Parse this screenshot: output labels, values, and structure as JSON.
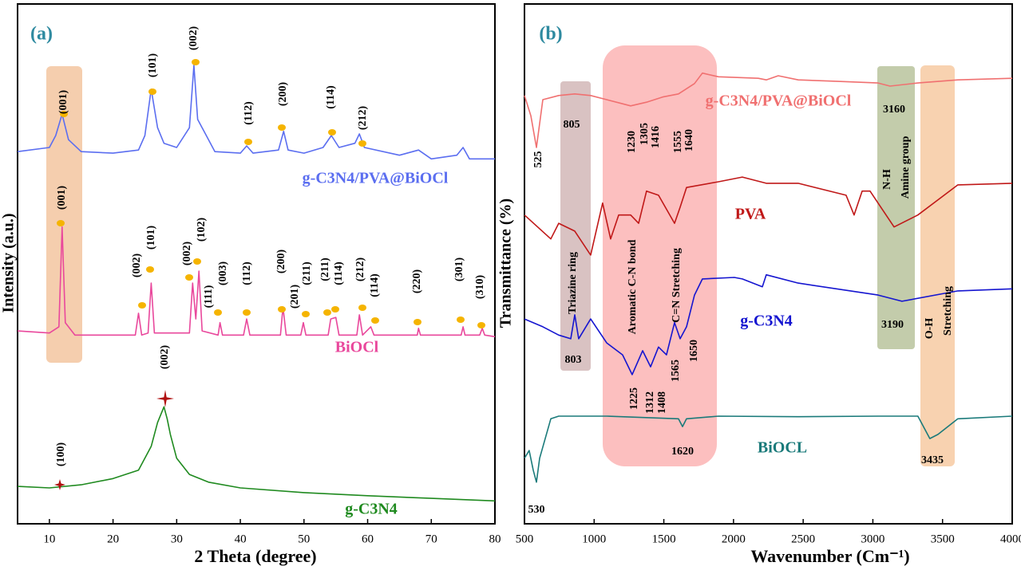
{
  "chart_data": [
    {
      "type": "line",
      "panel": "(a)",
      "xlabel": "2 Theta (degree)",
      "ylabel": "Intensity (a.u.)",
      "xlim": [
        5,
        80
      ],
      "ylim": [
        0,
        100
      ],
      "xticks": [
        10,
        20,
        30,
        40,
        50,
        60,
        70,
        80
      ],
      "series": [
        {
          "name": "g-C3N4/PVA@BiOCl",
          "color": "#5b6ef0",
          "x": [
            5,
            10,
            11,
            12,
            13,
            15,
            20,
            24,
            25,
            26,
            27,
            28,
            30,
            32,
            32.7,
            33.3,
            34,
            36,
            40,
            41,
            42,
            46,
            46.8,
            47.5,
            50,
            53,
            54.3,
            55.5,
            58,
            58.7,
            59.5,
            65,
            68,
            70,
            74,
            75,
            76,
            80
          ],
          "values": [
            71.6,
            72.4,
            74.7,
            78.8,
            73.9,
            71.6,
            71.3,
            71.9,
            74.7,
            83.6,
            76.2,
            73.2,
            72.4,
            76.2,
            88.2,
            77.8,
            76.2,
            71.6,
            71.3,
            72.7,
            71.3,
            71.9,
            75.5,
            71.9,
            71.3,
            72.4,
            74.7,
            72.4,
            73.2,
            75.0,
            72.4,
            70.9,
            71.9,
            70.2,
            70.9,
            72.4,
            70.2,
            70.2
          ]
        },
        {
          "name": "BiOCl",
          "color": "#e9489c",
          "x": [
            5,
            10,
            11.5,
            12,
            12.5,
            14,
            23.5,
            24,
            24.5,
            25.5,
            26,
            26.5,
            32,
            32.5,
            33,
            33.5,
            34,
            36.5,
            36.8,
            37.2,
            40.5,
            41,
            41.5,
            46.3,
            46.7,
            47.2,
            49.5,
            49.9,
            50.3,
            53.8,
            54.2,
            55,
            55.5,
            58.3,
            58.7,
            59.2,
            60.5,
            61,
            67.8,
            68,
            68.3,
            74.7,
            75,
            75.3,
            77.6,
            78,
            78.4,
            80
          ],
          "values": [
            37.1,
            36.7,
            37.9,
            57.1,
            38.7,
            36.3,
            36.3,
            40.5,
            36.3,
            36.7,
            46.3,
            36.7,
            36.7,
            46.3,
            39.4,
            48.6,
            37.1,
            36.3,
            38.7,
            36.3,
            36.3,
            39.4,
            36.3,
            36.3,
            41.7,
            36.3,
            36.3,
            38.7,
            36.3,
            36.3,
            39.4,
            39.7,
            36.3,
            36.3,
            40.2,
            36.3,
            37.9,
            36.3,
            36.3,
            37.6,
            36.3,
            36.3,
            37.9,
            36.3,
            36.3,
            37.6,
            36.3,
            36.0
          ]
        },
        {
          "name": "g-C3N4",
          "color": "#1f8a1f",
          "x": [
            5,
            10,
            15,
            20,
            24,
            26,
            27,
            28,
            28.5,
            29,
            30,
            32,
            35,
            40,
            50,
            60,
            70,
            80
          ],
          "values": [
            7.2,
            6.9,
            7.5,
            8.7,
            10.3,
            14.9,
            19.5,
            22.5,
            20.2,
            17.2,
            12.6,
            9.5,
            8.0,
            6.9,
            6.0,
            5.4,
            4.9,
            4.4
          ]
        }
      ],
      "annotations": [
        "(001)",
        "(101)",
        "(002)",
        "(112)",
        "(200)",
        "(114)",
        "(212)",
        "(001)",
        "(002)",
        "(101)",
        "(002)",
        "(102)",
        "(111)",
        "(003)",
        "(112)",
        "(200)",
        "(201)",
        "(211)",
        "(211)",
        "(114)",
        "(212)",
        "(114)",
        "(220)",
        "(301)",
        "(310)",
        "(100)",
        "(002)"
      ]
    },
    {
      "type": "line",
      "panel": "(b)",
      "xlabel": "Wavenumber (Cm⁻¹)",
      "ylabel": "Transmittance (%)",
      "xlim": [
        500,
        4000
      ],
      "ylim": [
        0,
        100
      ],
      "xticks": [
        500,
        1000,
        1500,
        2000,
        2500,
        3000,
        3500,
        4000
      ],
      "series": [
        {
          "name": "g-C3N4/PVA@BiOCl",
          "color": "#f07070",
          "x": [
            500,
            546,
            586,
            632,
            746,
            861,
            975,
            1090,
            1262,
            1376,
            1491,
            1605,
            1720,
            1777,
            1892,
            2178,
            2235,
            2321,
            2464,
            2751,
            3037,
            3123,
            3323,
            3610,
            4000
          ],
          "values": [
            82.4,
            78.5,
            72.4,
            81.6,
            82.4,
            82.7,
            82.4,
            81.6,
            80.4,
            81.1,
            82.1,
            82.7,
            84.7,
            86.7,
            86.0,
            85.7,
            85.4,
            86.2,
            85.4,
            85.1,
            84.8,
            84.2,
            84.8,
            85.4,
            85.7
          ]
        },
        {
          "name": "PVA",
          "color": "#c01818",
          "x": [
            500,
            689,
            746,
            861,
            975,
            1061,
            1118,
            1176,
            1262,
            1319,
            1376,
            1462,
            1577,
            1617,
            1663,
            1892,
            2063,
            2235,
            2464,
            2808,
            2865,
            2923,
            2980,
            3152,
            3323,
            3610,
            4000
          ],
          "values": [
            59.4,
            54.8,
            57.8,
            56.3,
            51.7,
            61.7,
            54.8,
            59.4,
            59.4,
            57.8,
            64.0,
            63.2,
            57.8,
            60.9,
            64.7,
            65.8,
            66.7,
            65.5,
            65.5,
            63.2,
            59.4,
            64.0,
            64.0,
            57.1,
            59.4,
            65.2,
            65.5
          ]
        },
        {
          "name": "g-C3N4",
          "color": "#1515d0",
          "x": [
            500,
            632,
            746,
            832,
            861,
            889,
            975,
            1090,
            1204,
            1273,
            1348,
            1405,
            1462,
            1519,
            1577,
            1617,
            1663,
            1720,
            1777,
            2006,
            2063,
            2207,
            2235,
            2464,
            3037,
            3209,
            3610,
            4000
          ],
          "values": [
            39.4,
            37.9,
            36.3,
            35.6,
            40.2,
            35.6,
            39.4,
            34.8,
            32.5,
            28.7,
            33.3,
            30.2,
            34.0,
            32.5,
            38.7,
            35.6,
            37.9,
            44.0,
            47.1,
            47.4,
            47.1,
            45.6,
            47.9,
            46.3,
            44.0,
            42.8,
            44.8,
            45.2
          ]
        },
        {
          "name": "BiOCL",
          "color": "#1a7a7a",
          "x": [
            500,
            534,
            563,
            586,
            609,
            689,
            746,
            1090,
            1605,
            1634,
            1663,
            1892,
            2464,
            3037,
            3323,
            3409,
            3467,
            3610,
            4000
          ],
          "values": [
            12.6,
            14.1,
            10.3,
            8.0,
            12.6,
            20.2,
            20.7,
            20.7,
            20.2,
            18.7,
            20.2,
            20.7,
            20.6,
            20.7,
            20.7,
            16.4,
            17.2,
            20.2,
            20.7
          ]
        }
      ],
      "annotations": [
        "525",
        "805",
        "1230",
        "1305",
        "1416",
        "1555",
        "1640",
        "3160",
        "N-H",
        "Amine group",
        "Triazine ring",
        "803",
        "Aromatic C-N bond",
        "C=N Stretching",
        "1225",
        "1312",
        "1408",
        "1565",
        "1650",
        "3190",
        "O-H",
        "Stretching",
        "1620",
        "3435",
        "530"
      ]
    }
  ]
}
